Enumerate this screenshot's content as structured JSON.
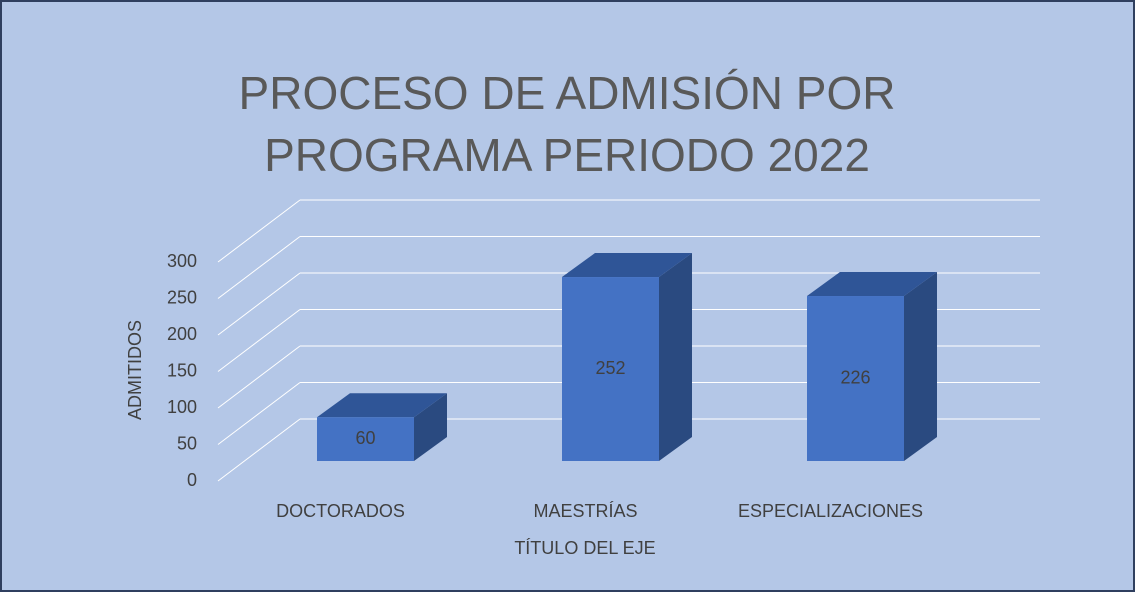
{
  "chart_data": {
    "type": "bar3d",
    "title": "PROCESO DE ADMISIÓN POR PROGRAMA PERIODO 2022",
    "x_label": "TÍTULO DEL EJE",
    "y_label": "ADMITIDOS",
    "categories": [
      "DOCTORADOS",
      "MAESTRÍAS",
      "ESPECIALIZACIONES"
    ],
    "values": [
      60,
      252,
      226
    ],
    "color": "#4472c4",
    "ylim": [
      0,
      300
    ],
    "yticks": [
      0,
      50,
      100,
      150,
      200,
      250,
      300
    ],
    "grid": true
  }
}
